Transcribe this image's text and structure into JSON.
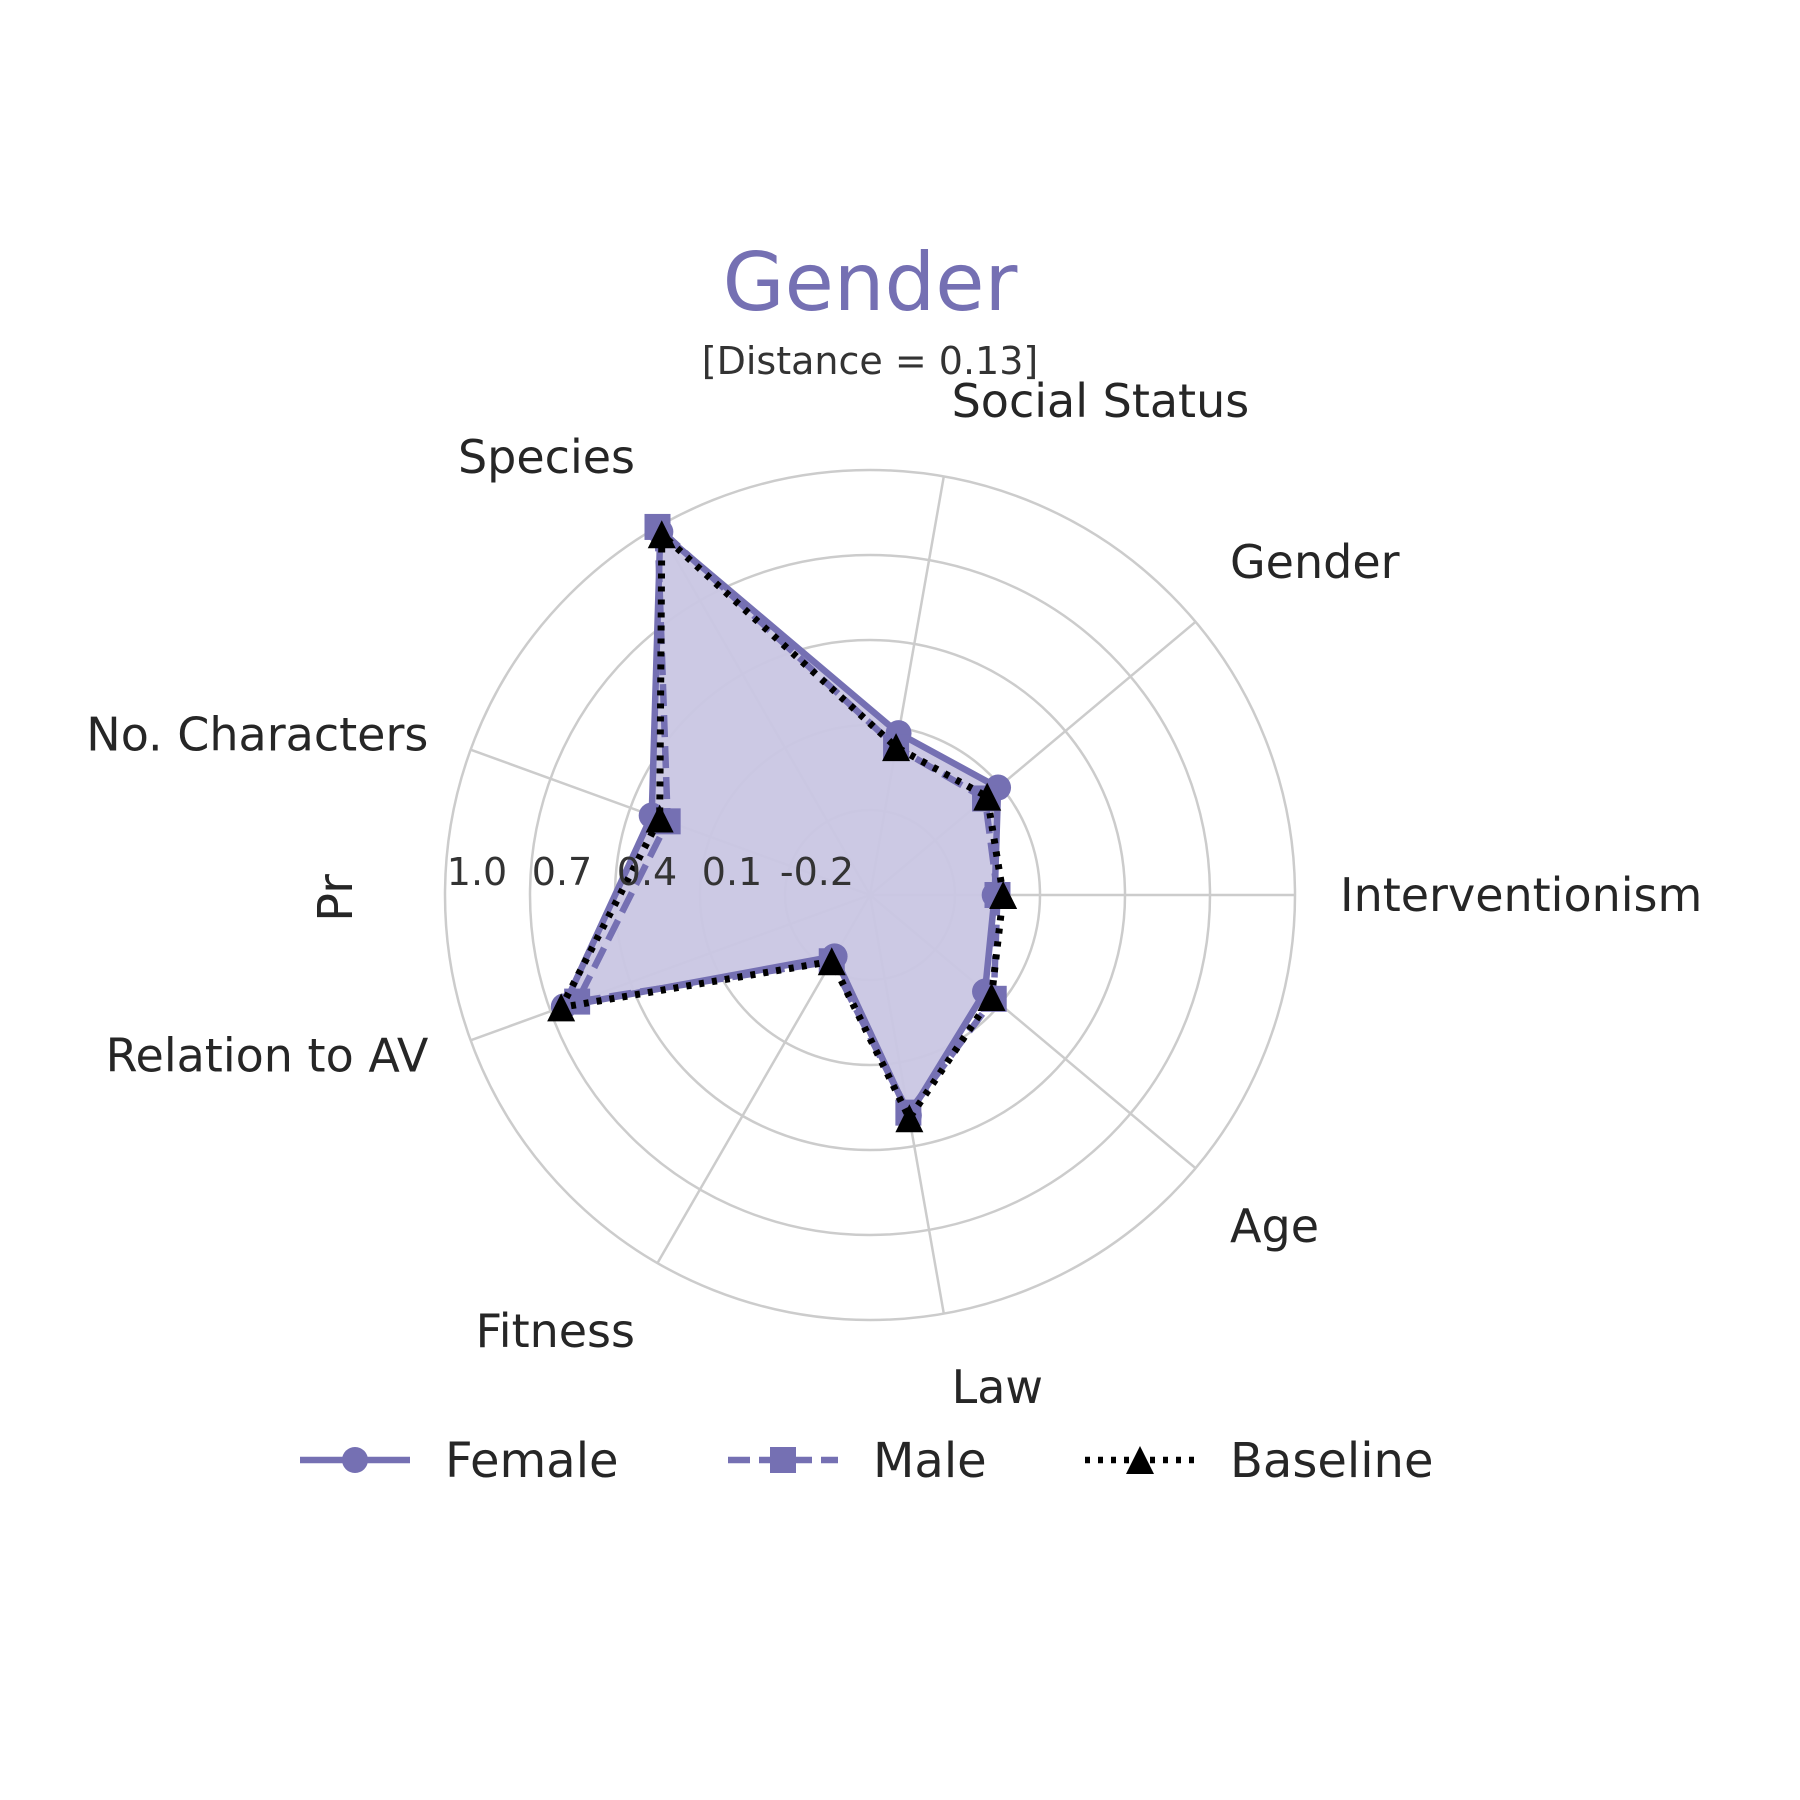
{
  "chart_data": {
    "type": "radar",
    "title": "Gender",
    "subtitle": "[Distance = 0.13]",
    "ylabel": "Pr",
    "title_color": "#7570b3",
    "axes": [
      "Interventionism",
      "Gender",
      "Social Status",
      "Species",
      "No. Characters",
      "Relation to AV",
      "Fitness",
      "Law",
      "Age"
    ],
    "radial_ticks": [
      "-0.2",
      "0.1",
      "0.4",
      "0.7",
      "1.0"
    ],
    "radial_tick_values": [
      -0.2,
      0.1,
      0.4,
      0.7,
      1.0
    ],
    "rlim": [
      -0.5,
      1.0
    ],
    "grid": true,
    "legend_position": "bottom",
    "series": [
      {
        "name": "Female",
        "values": [
          -0.06,
          0.09,
          0.08,
          0.98,
          0.32,
          0.65,
          -0.25,
          0.29,
          0.03
        ],
        "color": "#7570b3",
        "line_style": "solid",
        "marker": "circle",
        "fill": true,
        "fill_color": "#c9c6e3"
      },
      {
        "name": "Male",
        "values": [
          -0.05,
          0.03,
          0.03,
          1.0,
          0.26,
          0.6,
          -0.23,
          0.28,
          0.07
        ],
        "color": "#7570b3",
        "line_style": "dashed",
        "marker": "square",
        "fill": false
      },
      {
        "name": "Baseline",
        "values": [
          -0.03,
          0.04,
          0.03,
          0.97,
          0.29,
          0.66,
          -0.23,
          0.3,
          0.06
        ],
        "color": "#000000",
        "line_style": "dotted",
        "marker": "triangle",
        "fill": false
      }
    ]
  }
}
